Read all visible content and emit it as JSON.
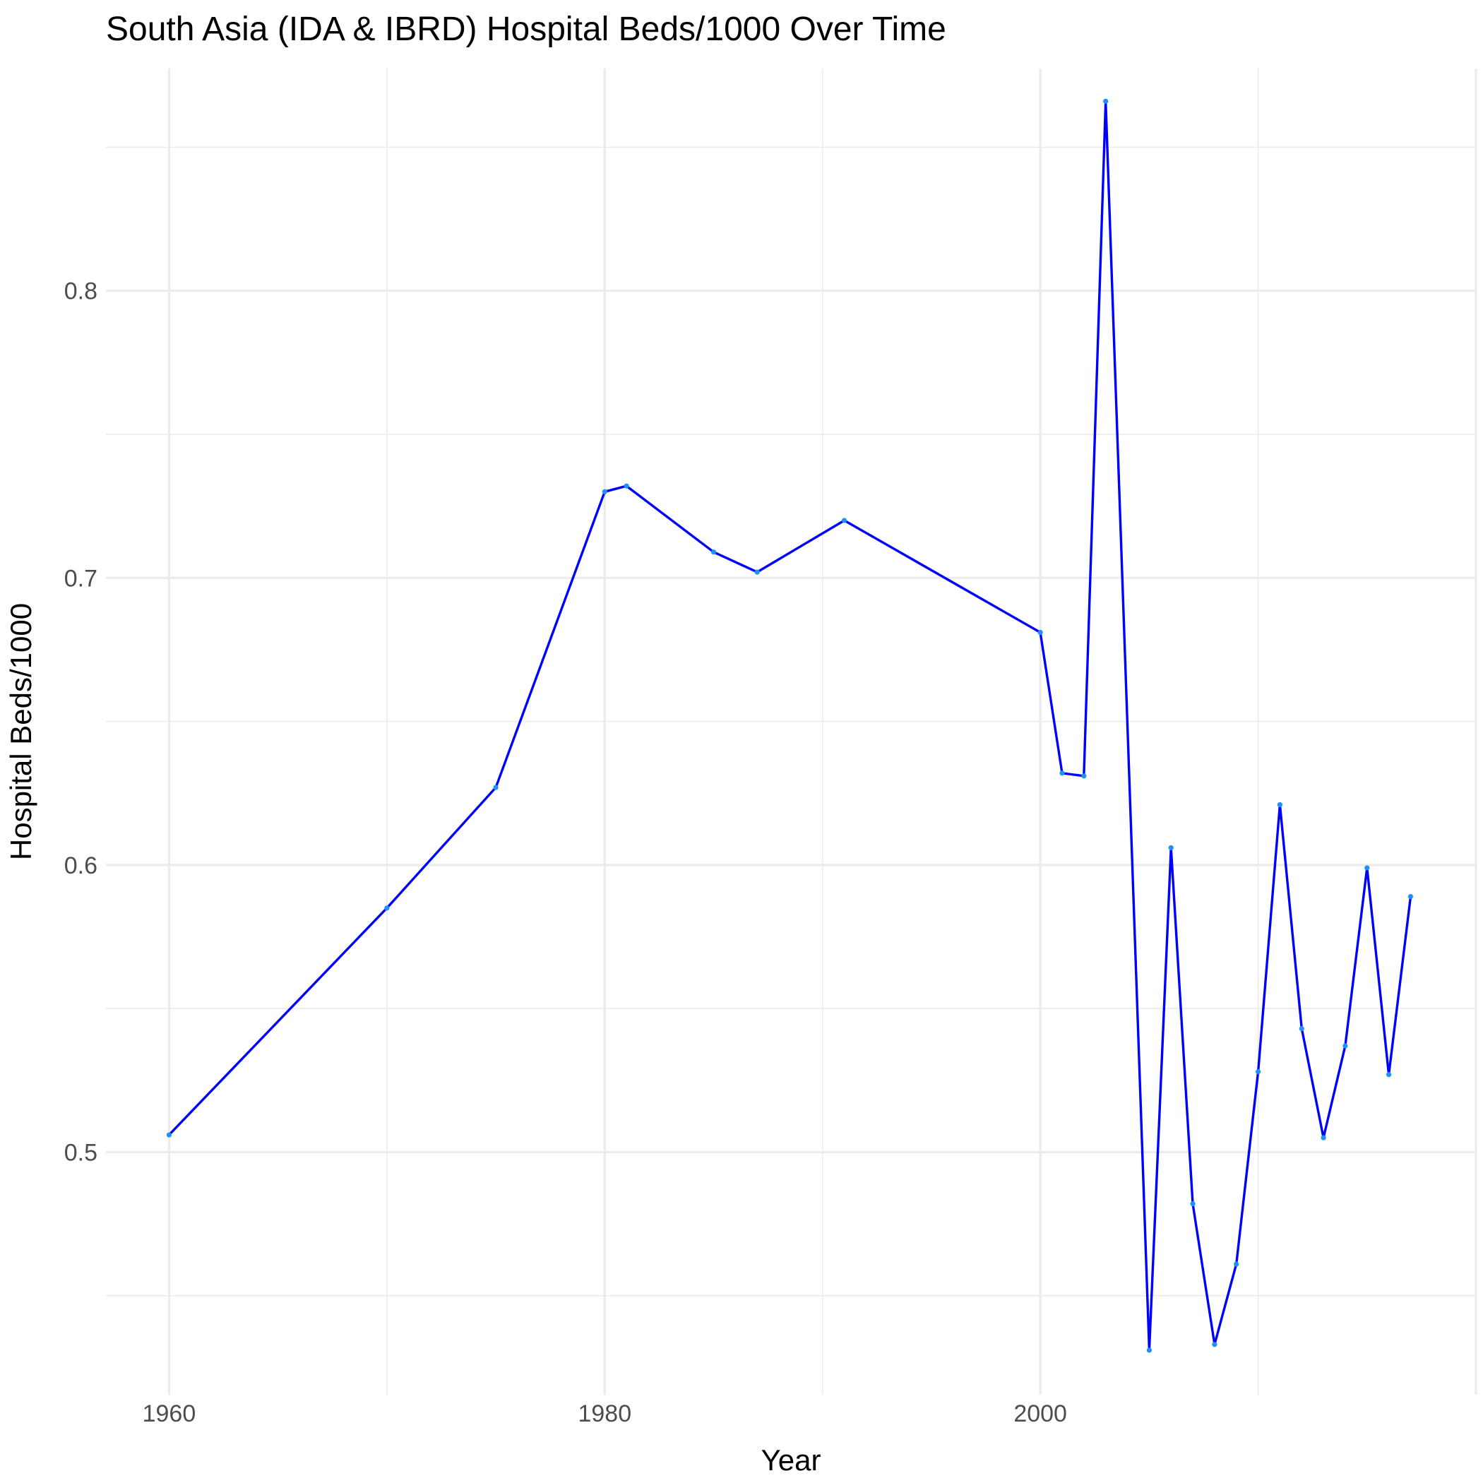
{
  "chart_data": {
    "type": "line",
    "title": "South Asia (IDA & IBRD) Hospital Beds/1000 Over Time",
    "xlabel": "Year",
    "ylabel": "Hospital Beds/1000",
    "xlim": [
      1957.1,
      2020.0
    ],
    "ylim": [
      0.4155,
      0.8774
    ],
    "x_ticks": [
      1960,
      1980,
      2000
    ],
    "y_ticks": [
      0.5,
      0.6,
      0.7,
      0.8
    ],
    "grid": true,
    "line_color": "#0000ff",
    "point_color": "#1e90ff",
    "series": [
      {
        "x": [
          1960,
          1970,
          1975,
          1980,
          1981,
          1985,
          1987,
          1991,
          2000,
          2001,
          2002,
          2003,
          2005,
          2006,
          2007,
          2008,
          2009,
          2010,
          2011,
          2012,
          2013,
          2014,
          2015,
          2016,
          2017
        ],
        "y": [
          0.506,
          0.585,
          0.627,
          0.73,
          0.732,
          0.709,
          0.702,
          0.72,
          0.681,
          0.632,
          0.631,
          0.866,
          0.431,
          0.606,
          0.482,
          0.433,
          0.461,
          0.528,
          0.621,
          0.543,
          0.505,
          0.537,
          0.599,
          0.527,
          0.589
        ]
      }
    ]
  }
}
